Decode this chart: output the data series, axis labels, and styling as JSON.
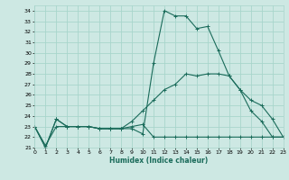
{
  "xlabel": "Humidex (Indice chaleur)",
  "background_color": "#cde8e3",
  "grid_color": "#a8d5cc",
  "line_color": "#1a6b5a",
  "x": [
    0,
    1,
    2,
    3,
    4,
    5,
    6,
    7,
    8,
    9,
    10,
    11,
    12,
    13,
    14,
    15,
    16,
    17,
    18,
    19,
    20,
    21,
    22,
    23
  ],
  "line1": [
    23.0,
    21.0,
    23.7,
    23.0,
    23.0,
    23.0,
    22.8,
    22.8,
    22.8,
    22.8,
    22.3,
    29.0,
    34.0,
    33.5,
    33.5,
    32.3,
    32.5,
    30.2,
    27.8,
    26.5,
    24.5,
    23.5,
    22.0,
    22.0
  ],
  "line2": [
    23.0,
    21.0,
    23.7,
    23.0,
    23.0,
    23.0,
    22.8,
    22.8,
    22.8,
    23.0,
    23.2,
    22.0,
    22.0,
    22.0,
    22.0,
    22.0,
    22.0,
    22.0,
    22.0,
    22.0,
    22.0,
    22.0,
    22.0,
    22.0
  ],
  "line3": [
    23.0,
    21.2,
    23.0,
    23.0,
    23.0,
    23.0,
    22.8,
    22.8,
    22.8,
    23.5,
    24.5,
    25.5,
    26.5,
    27.0,
    28.0,
    27.8,
    28.0,
    28.0,
    27.8,
    26.5,
    25.5,
    25.0,
    23.7,
    22.0
  ],
  "xlim": [
    0,
    23
  ],
  "ylim": [
    21,
    34.5
  ],
  "yticks": [
    21,
    22,
    23,
    24,
    25,
    26,
    27,
    28,
    29,
    30,
    31,
    32,
    33,
    34
  ],
  "xticks": [
    0,
    1,
    2,
    3,
    4,
    5,
    6,
    7,
    8,
    9,
    10,
    11,
    12,
    13,
    14,
    15,
    16,
    17,
    18,
    19,
    20,
    21,
    22,
    23
  ]
}
